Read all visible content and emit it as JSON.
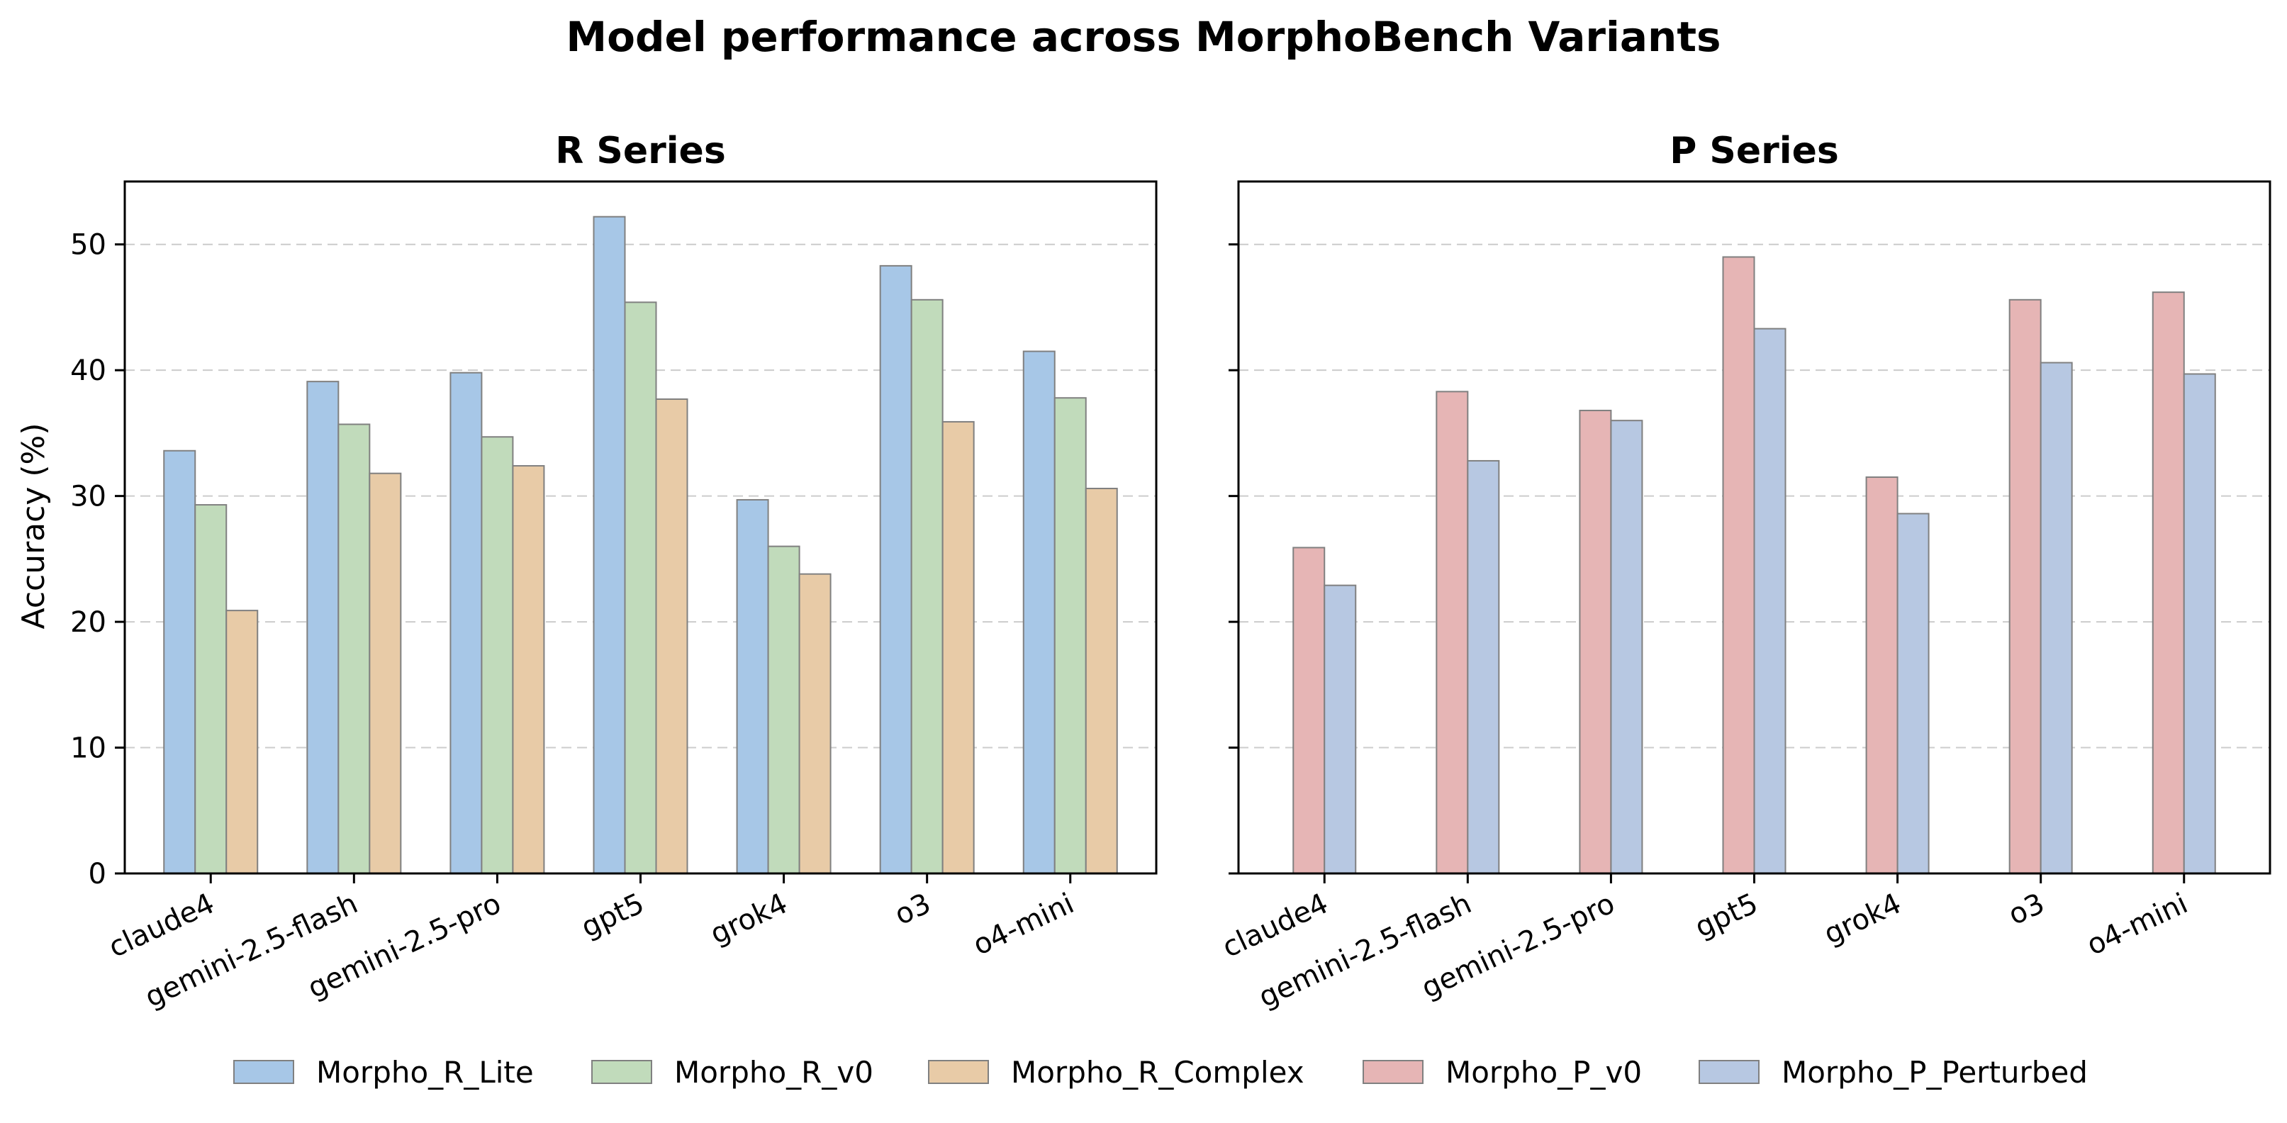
{
  "title": "Model performance across MorphoBench Variants",
  "ylabel": "Accuracy (%)",
  "yticks": [
    "0",
    "10",
    "20",
    "30",
    "40",
    "50"
  ],
  "chart_data": [
    {
      "type": "bar",
      "title": "R Series",
      "ylabel": "Accuracy (%)",
      "ylim": [
        0,
        55
      ],
      "grid": "y, dashed",
      "categories": [
        "claude4",
        "gemini-2.5-flash",
        "gemini-2.5-pro",
        "gpt5",
        "grok4",
        "o3",
        "o4-mini"
      ],
      "series": [
        {
          "name": "Morpho_R_Lite",
          "color": "#a7c7e7",
          "values": [
            33.6,
            39.1,
            39.8,
            52.2,
            29.7,
            48.3,
            41.5
          ]
        },
        {
          "name": "Morpho_R_v0",
          "color": "#c1dbbb",
          "values": [
            29.3,
            35.7,
            34.7,
            45.4,
            26.0,
            45.6,
            37.8
          ]
        },
        {
          "name": "Morpho_R_Complex",
          "color": "#e8cba7",
          "values": [
            20.9,
            31.8,
            32.4,
            37.7,
            23.8,
            35.9,
            30.6
          ]
        }
      ]
    },
    {
      "type": "bar",
      "title": "P Series",
      "ylim": [
        0,
        55
      ],
      "grid": "y, dashed",
      "categories": [
        "claude4",
        "gemini-2.5-flash",
        "gemini-2.5-pro",
        "gpt5",
        "grok4",
        "o3",
        "o4-mini"
      ],
      "series": [
        {
          "name": "Morpho_P_v0",
          "color": "#e6b5b5",
          "values": [
            25.9,
            38.3,
            36.8,
            49.0,
            31.5,
            45.6,
            46.2
          ]
        },
        {
          "name": "Morpho_P_Perturbed",
          "color": "#b7c8e2",
          "values": [
            22.9,
            32.8,
            36.0,
            43.3,
            28.6,
            40.6,
            39.7
          ]
        }
      ]
    }
  ],
  "legend": {
    "placement": "bottom",
    "items": [
      {
        "label": "Morpho_R_Lite",
        "color": "#a7c7e7"
      },
      {
        "label": "Morpho_R_v0",
        "color": "#c1dbbb"
      },
      {
        "label": "Morpho_R_Complex",
        "color": "#e8cba7"
      },
      {
        "label": "Morpho_P_v0",
        "color": "#e6b5b5"
      },
      {
        "label": "Morpho_P_Perturbed",
        "color": "#b7c8e2"
      }
    ]
  }
}
